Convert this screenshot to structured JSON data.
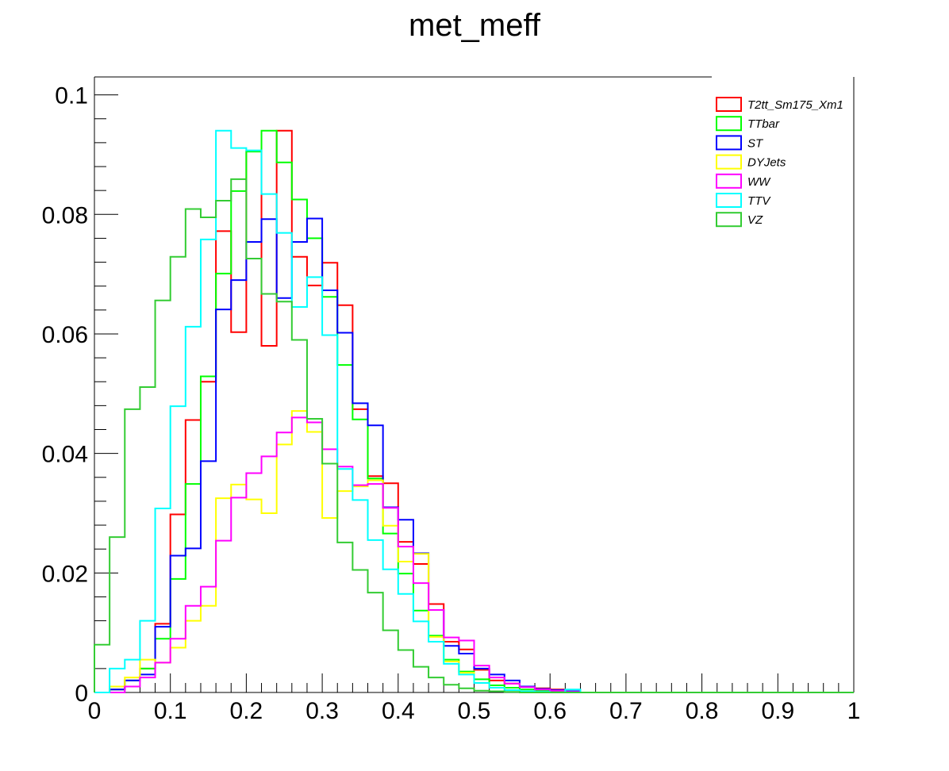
{
  "chart_data": {
    "type": "histogram",
    "title": "met_meff",
    "xlabel": "",
    "ylabel": "",
    "xlim": [
      0,
      1
    ],
    "ylim": [
      0,
      0.103
    ],
    "bin_width": 0.02,
    "x_ticks": [
      "0",
      "0.1",
      "0.2",
      "0.3",
      "0.4",
      "0.5",
      "0.6",
      "0.7",
      "0.8",
      "0.9",
      "1"
    ],
    "y_ticks": [
      "0",
      "0.02",
      "0.04",
      "0.06",
      "0.08",
      "0.1"
    ],
    "legend_position": "top-right",
    "series": [
      {
        "name": "T2tt_Sm175_Xm1",
        "color": "#ff0000",
        "values": [
          0,
          0.0005,
          0.002,
          0.004,
          0.0115,
          0.0298,
          0.0456,
          0.052,
          0.0772,
          0.0603,
          0.0906,
          0.058,
          0.094,
          0.0729,
          0.0681,
          0.0719,
          0.0648,
          0.0474,
          0.0362,
          0.035,
          0.0252,
          0.0215,
          0.0148,
          0.0085,
          0.0072,
          0.0038,
          0.002,
          0.0015,
          0.001,
          0.0007,
          0.0005,
          0.0002,
          0,
          0,
          0,
          0,
          0,
          0,
          0,
          0,
          0,
          0,
          0,
          0,
          0,
          0,
          0,
          0,
          0,
          0
        ]
      },
      {
        "name": "TTbar",
        "color": "#00ff00",
        "values": [
          0,
          0.0005,
          0.002,
          0.004,
          0.009,
          0.019,
          0.0349,
          0.0529,
          0.0701,
          0.0839,
          0.0905,
          0.094,
          0.0887,
          0.0825,
          0.076,
          0.0662,
          0.0548,
          0.0457,
          0.0358,
          0.0266,
          0.0199,
          0.0137,
          0.0095,
          0.0055,
          0.0035,
          0.0022,
          0.0012,
          0.0008,
          0.0005,
          0.0003,
          0.0002,
          0,
          0,
          0,
          0,
          0,
          0,
          0,
          0,
          0,
          0,
          0,
          0,
          0,
          0,
          0,
          0,
          0,
          0,
          0
        ]
      },
      {
        "name": "ST",
        "color": "#0000ff",
        "values": [
          0,
          0.0005,
          0.002,
          0.003,
          0.011,
          0.0229,
          0.0241,
          0.0387,
          0.0641,
          0.069,
          0.0754,
          0.0792,
          0.066,
          0.0754,
          0.0793,
          0.0673,
          0.0602,
          0.0484,
          0.0447,
          0.031,
          0.0289,
          0.0233,
          0.0138,
          0.0078,
          0.0065,
          0.004,
          0.003,
          0.002,
          0.001,
          0.0006,
          0.0004,
          0.0002,
          0,
          0,
          0,
          0,
          0,
          0,
          0,
          0,
          0,
          0,
          0,
          0,
          0,
          0,
          0,
          0,
          0,
          0
        ]
      },
      {
        "name": "DYJets",
        "color": "#ffff00",
        "values": [
          0,
          0.001,
          0.0025,
          0.0055,
          0.005,
          0.0075,
          0.012,
          0.0145,
          0.0325,
          0.0348,
          0.0323,
          0.03,
          0.0415,
          0.0471,
          0.0436,
          0.0292,
          0.0337,
          0.0345,
          0.0355,
          0.0279,
          0.0219,
          0.0232,
          0.0093,
          0.0052,
          0.0033,
          0.0016,
          0.0008,
          0.0004,
          0.0002,
          0,
          0,
          0,
          0,
          0,
          0,
          0,
          0,
          0,
          0,
          0,
          0,
          0,
          0,
          0,
          0,
          0,
          0,
          0,
          0,
          0
        ]
      },
      {
        "name": "WW",
        "color": "#ff00ff",
        "values": [
          0,
          0,
          0.001,
          0.0025,
          0.005,
          0.009,
          0.0145,
          0.0177,
          0.0254,
          0.0326,
          0.0367,
          0.0395,
          0.0435,
          0.046,
          0.0452,
          0.0407,
          0.0378,
          0.0347,
          0.0349,
          0.0309,
          0.0244,
          0.0183,
          0.0138,
          0.0092,
          0.0087,
          0.0045,
          0.0025,
          0.0015,
          0.0009,
          0.0005,
          0.0003,
          0.0001,
          0,
          0,
          0,
          0,
          0,
          0,
          0,
          0,
          0,
          0,
          0,
          0,
          0,
          0,
          0,
          0,
          0,
          0
        ]
      },
      {
        "name": "TTV",
        "color": "#00ffff",
        "values": [
          0,
          0.004,
          0.0055,
          0.012,
          0.0308,
          0.0479,
          0.0612,
          0.0758,
          0.094,
          0.0911,
          0.0907,
          0.0834,
          0.0769,
          0.0645,
          0.0695,
          0.0598,
          0.0374,
          0.0322,
          0.0255,
          0.0206,
          0.0165,
          0.0119,
          0.0085,
          0.0048,
          0.003,
          0.0016,
          0.0008,
          0.0004,
          0.0002,
          0.0001,
          0,
          0.0005,
          0,
          0,
          0,
          0,
          0,
          0,
          0,
          0,
          0,
          0,
          0,
          0,
          0,
          0,
          0,
          0,
          0,
          0
        ]
      },
      {
        "name": "VZ",
        "color": "#33cc33",
        "values": [
          0.008,
          0.026,
          0.0474,
          0.0511,
          0.0656,
          0.0729,
          0.0809,
          0.0795,
          0.0823,
          0.0859,
          0.0726,
          0.0667,
          0.0654,
          0.059,
          0.0458,
          0.0383,
          0.0251,
          0.0205,
          0.0167,
          0.0104,
          0.0071,
          0.0043,
          0.0025,
          0.0013,
          0.0007,
          0.0003,
          0.0002,
          0.0001,
          0,
          0,
          0,
          0,
          0,
          0,
          0,
          0,
          0,
          0,
          0,
          0,
          0,
          0,
          0,
          0,
          0,
          0,
          0,
          0,
          0,
          0
        ]
      }
    ]
  }
}
